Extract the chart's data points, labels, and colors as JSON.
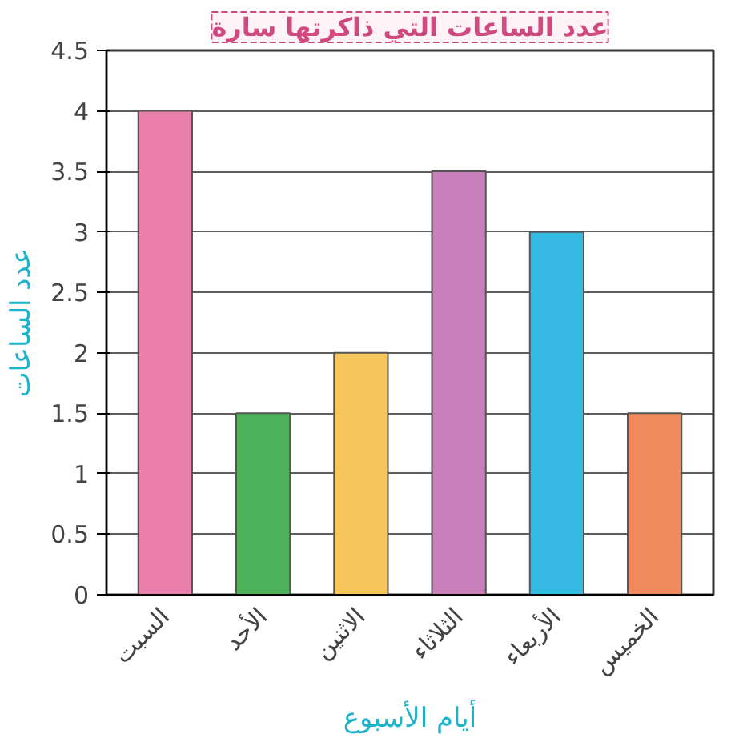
{
  "chart_data": {
    "type": "bar",
    "title": "عدد الساعات التي ذاكرتها سارة",
    "xlabel": "أيام الأسبوع",
    "ylabel": "عدد الساعات",
    "categories": [
      "السبت",
      "الأحد",
      "الاثنين",
      "الثلاثاء",
      "الأربعاء",
      "الخميس"
    ],
    "values": [
      4,
      1.5,
      2,
      3.5,
      3,
      1.5
    ],
    "colors": [
      "#ea7fac",
      "#4db15a",
      "#f6c65a",
      "#c97fba",
      "#35b9e2",
      "#f08a5c"
    ],
    "ylim": [
      0,
      4.5
    ],
    "yticks": [
      0,
      0.5,
      1,
      1.5,
      2,
      2.5,
      3,
      3.5,
      4,
      4.5
    ],
    "grid": "y"
  }
}
